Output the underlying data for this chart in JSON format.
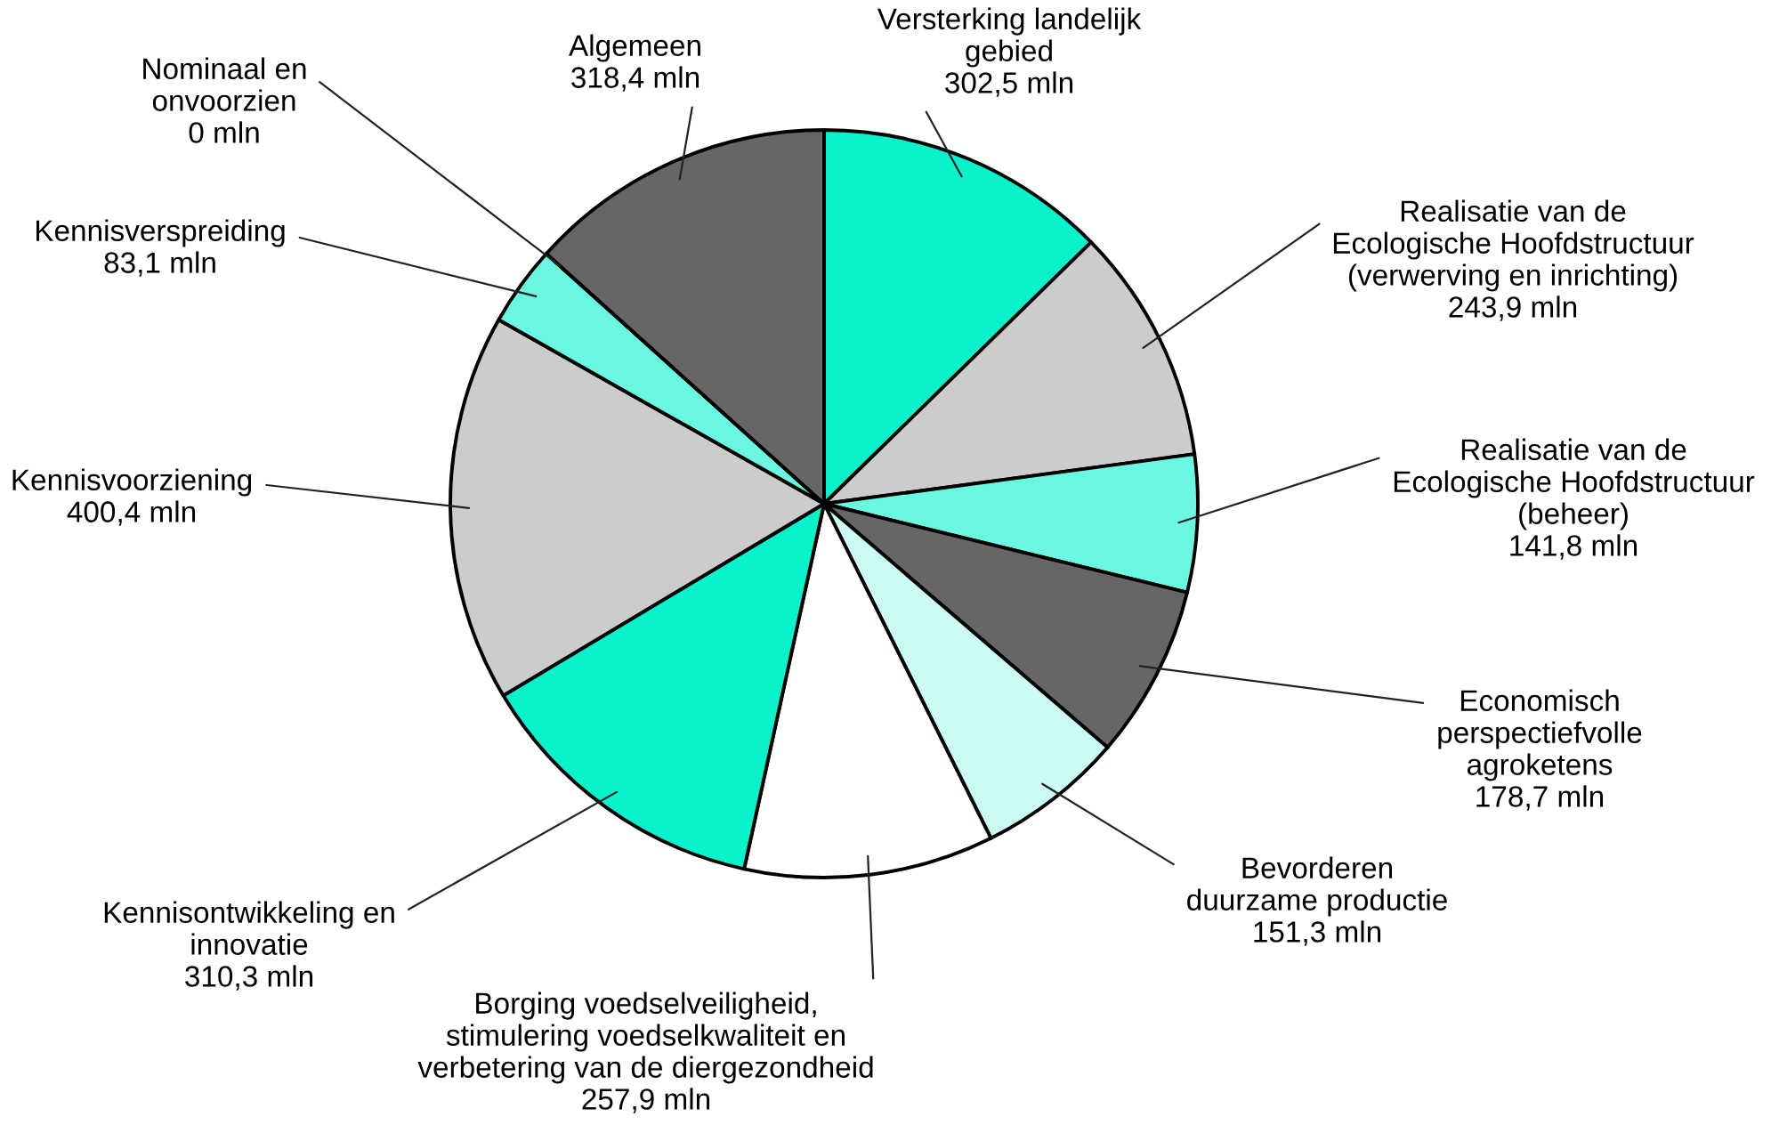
{
  "chart_data": {
    "type": "pie",
    "categories": [
      "Versterking landelijk\ngebied",
      "Realisatie van de\nEcologische Hoofdstructuur\n(verwerving en inrichting)",
      "Realisatie van de\nEcologische Hoofdstructuur\n(beheer)",
      "Economisch\nperspectiefvolle\nagroketens",
      "Bevorderen\nduurzame productie",
      "Borging voedselveiligheid,\nstimulering voedselkwaliteit en\nverbetering van de diergezondheid",
      "Kennisontwikkeling en\ninnovatie",
      "Kennisvoorziening",
      "Kennisverspreiding",
      "Nominaal en\nonvoorzien",
      "Algemeen"
    ],
    "values": [
      302.5,
      243.9,
      141.8,
      178.7,
      151.3,
      257.9,
      310.3,
      400.4,
      83.1,
      0,
      318.4
    ],
    "value_labels": [
      "302,5 mln",
      "243,9 mln",
      "141,8 mln",
      "178,7 mln",
      "151,3 mln",
      "257,9 mln",
      "310,3 mln",
      "400,4 mln",
      "83,1 mln",
      "0 mln",
      "318,4 mln"
    ],
    "colors": [
      "#0af2cc",
      "#cccccc",
      "#6af8e0",
      "#666666",
      "#ccfaf4",
      "#ffffff",
      "#0af2cc",
      "#cccccc",
      "#6af8e0",
      "#666666",
      "#666666"
    ]
  }
}
